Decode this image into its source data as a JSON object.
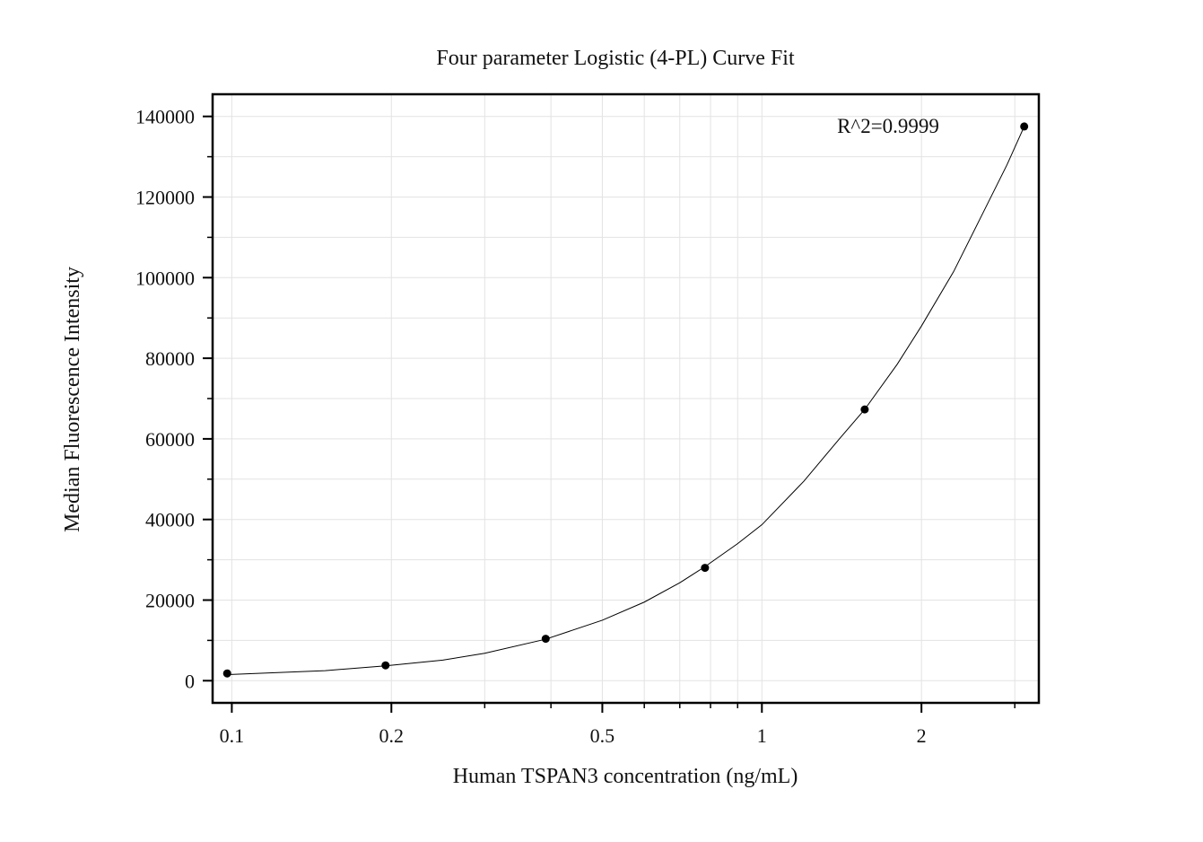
{
  "chart_data": {
    "type": "scatter",
    "title": "Four parameter Logistic (4-PL) Curve Fit",
    "xlabel": "Human TSPAN3 concentration (ng/mL)",
    "ylabel": "Median Fluorescence Intensity",
    "x_scale": "log",
    "xlim": [
      0.092,
      3.33
    ],
    "ylim": [
      -5500,
      145500
    ],
    "x_ticks": [
      {
        "value": 0.1,
        "label": "0.1"
      },
      {
        "value": 0.2,
        "label": "0.2"
      },
      {
        "value": 0.5,
        "label": "0.5"
      },
      {
        "value": 1,
        "label": "1"
      },
      {
        "value": 2,
        "label": "2"
      }
    ],
    "y_ticks": [
      {
        "value": 0,
        "label": "0"
      },
      {
        "value": 20000,
        "label": "20000"
      },
      {
        "value": 40000,
        "label": "40000"
      },
      {
        "value": 60000,
        "label": "60000"
      },
      {
        "value": 80000,
        "label": "80000"
      },
      {
        "value": 100000,
        "label": "100000"
      },
      {
        "value": 120000,
        "label": "120000"
      },
      {
        "value": 140000,
        "label": "140000"
      }
    ],
    "grid": true,
    "series": [
      {
        "points": [
          {
            "x": 0.098,
            "y": 1800
          },
          {
            "x": 0.195,
            "y": 3800
          },
          {
            "x": 0.391,
            "y": 10400
          },
          {
            "x": 0.781,
            "y": 28000
          },
          {
            "x": 1.563,
            "y": 67300
          },
          {
            "x": 3.125,
            "y": 137500
          }
        ],
        "curve": [
          {
            "x": 0.098,
            "y": 1500
          },
          {
            "x": 0.15,
            "y": 2500
          },
          {
            "x": 0.195,
            "y": 3700
          },
          {
            "x": 0.25,
            "y": 5100
          },
          {
            "x": 0.3,
            "y": 6800
          },
          {
            "x": 0.391,
            "y": 10300
          },
          {
            "x": 0.5,
            "y": 15000
          },
          {
            "x": 0.6,
            "y": 19500
          },
          {
            "x": 0.7,
            "y": 24300
          },
          {
            "x": 0.781,
            "y": 28300
          },
          {
            "x": 0.9,
            "y": 34000
          },
          {
            "x": 1.0,
            "y": 38700
          },
          {
            "x": 1.2,
            "y": 49500
          },
          {
            "x": 1.4,
            "y": 60000
          },
          {
            "x": 1.563,
            "y": 67300
          },
          {
            "x": 1.8,
            "y": 78500
          },
          {
            "x": 2.0,
            "y": 88000
          },
          {
            "x": 2.3,
            "y": 101500
          },
          {
            "x": 2.6,
            "y": 115500
          },
          {
            "x": 2.9,
            "y": 128000
          },
          {
            "x": 3.125,
            "y": 137500
          }
        ]
      }
    ],
    "annotations": [
      {
        "text": "R^2=0.9999",
        "position": "top-right"
      }
    ]
  }
}
